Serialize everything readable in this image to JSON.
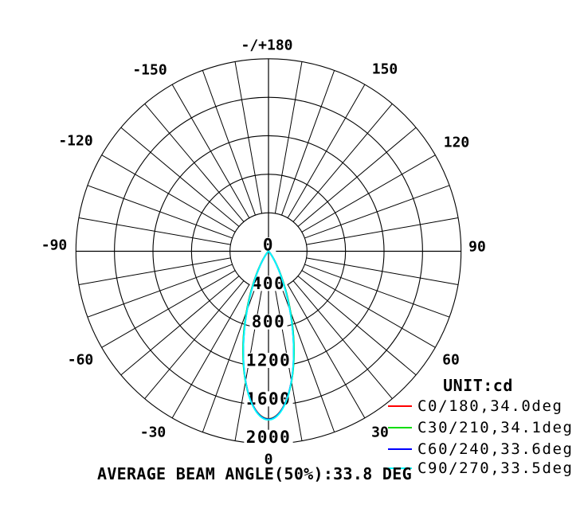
{
  "chart_data": {
    "type": "polar-line",
    "description": "Luminous intensity distribution curve (polar photometric diagram)",
    "unit_label": "UNIT:cd",
    "footer": "AVERAGE BEAM ANGLE(50%):33.8 DEG",
    "average_beam_angle_50_deg": 33.8,
    "background_color": "#ffffff",
    "grid_color": "#000000",
    "angle_axis": {
      "zero_position": "bottom",
      "label_step_deg": 30,
      "spoke_step_deg": 10,
      "labels": [
        "-/+180",
        "-150",
        "-120",
        "-90",
        "-60",
        "-30",
        "0",
        "30",
        "60",
        "90",
        "120",
        "150"
      ]
    },
    "radial_axis": {
      "unit": "cd",
      "min": 0,
      "max": 2000,
      "step": 400,
      "tick_labels": [
        "0",
        "400",
        "800",
        "1200",
        "1600",
        "2000"
      ]
    },
    "series": [
      {
        "name": "C0/180,34.0deg",
        "c_plane": "C0/180",
        "beam_angle_deg": 34.0,
        "peak_cd": 1740,
        "color": "#ff0000",
        "profile": {
          "angles_deg": [
            0,
            5,
            10,
            15,
            20,
            25,
            30,
            35,
            40,
            45,
            50
          ],
          "intensity_cd": [
            1740,
            1640,
            1372,
            1016,
            662,
            378,
            187,
            79,
            28,
            8,
            2
          ]
        }
      },
      {
        "name": "C30/210,34.1deg",
        "c_plane": "C30/210",
        "beam_angle_deg": 34.1,
        "peak_cd": 1742,
        "color": "#00dd00",
        "profile": {
          "angles_deg": [
            0,
            5,
            10,
            15,
            20,
            25,
            30,
            35,
            40,
            45,
            50
          ],
          "intensity_cd": [
            1742,
            1642,
            1376,
            1021,
            668,
            382,
            190,
            80,
            29,
            8,
            2
          ]
        }
      },
      {
        "name": "C60/240,33.6deg",
        "c_plane": "C60/240",
        "beam_angle_deg": 33.6,
        "peak_cd": 1746,
        "color": "#0000ff",
        "profile": {
          "angles_deg": [
            0,
            5,
            10,
            15,
            20,
            25,
            30,
            35,
            40,
            45,
            50
          ],
          "intensity_cd": [
            1746,
            1643,
            1369,
            1006,
            650,
            366,
            178,
            73,
            25,
            7,
            2
          ]
        }
      },
      {
        "name": "C90/270,33.5deg",
        "c_plane": "C90/270",
        "beam_angle_deg": 33.5,
        "peak_cd": 1752,
        "color": "#00ffff",
        "profile": {
          "angles_deg": [
            0,
            5,
            10,
            15,
            20,
            25,
            30,
            35,
            40,
            45,
            50
          ],
          "intensity_cd": [
            1752,
            1648,
            1372,
            1007,
            648,
            364,
            176,
            72,
            25,
            7,
            1
          ]
        }
      }
    ]
  }
}
